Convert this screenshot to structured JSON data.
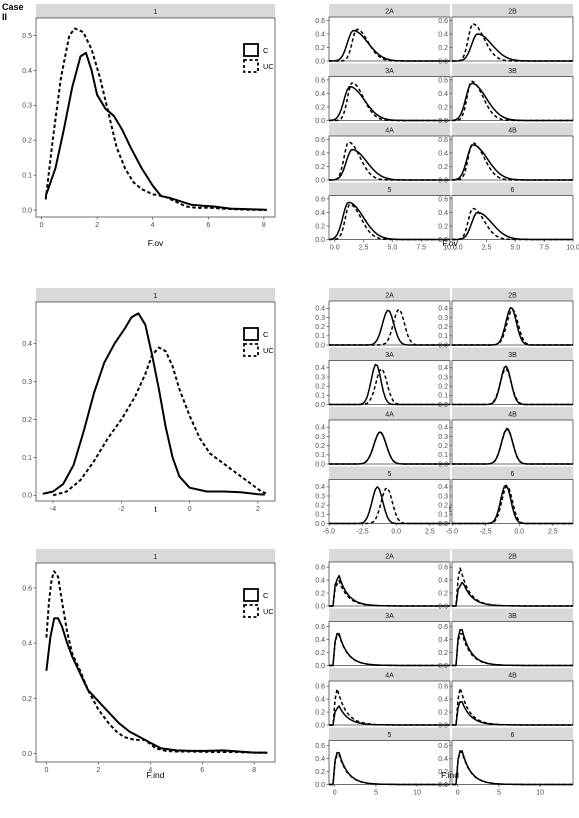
{
  "case_label": [
    "Case",
    "II"
  ],
  "colors": {
    "strip_bg": "#d9d9d9",
    "panel_border": "#333333",
    "line": "#000000",
    "tick_text": "#4d4d4d"
  },
  "legend": {
    "items": [
      {
        "label": "C",
        "linetype": "solid"
      },
      {
        "label": "UC",
        "linetype": "dashed"
      }
    ],
    "placement": "top-right inside"
  },
  "chart_data": [
    {
      "type": "line",
      "xlabel": "F.ov",
      "ylabel": "",
      "strip": "1",
      "xlim": [
        -0.2,
        8.4
      ],
      "ylim": [
        -0.02,
        0.55
      ],
      "xticks": [
        0,
        2,
        4,
        6,
        8
      ],
      "yticks": [
        0.0,
        0.1,
        0.2,
        0.3,
        0.4,
        0.5
      ],
      "series": [
        {
          "name": "C",
          "x": [
            0.15,
            0.5,
            0.8,
            1.1,
            1.4,
            1.6,
            1.8,
            2.0,
            2.3,
            2.6,
            2.9,
            3.2,
            3.6,
            4.0,
            4.3,
            4.6,
            5.0,
            5.4,
            5.8,
            6.2,
            6.8,
            7.5,
            8.1
          ],
          "y": [
            0.04,
            0.12,
            0.23,
            0.35,
            0.44,
            0.45,
            0.4,
            0.33,
            0.29,
            0.27,
            0.23,
            0.18,
            0.12,
            0.07,
            0.04,
            0.035,
            0.025,
            0.015,
            0.012,
            0.01,
            0.004,
            0.002,
            0.001
          ]
        },
        {
          "name": "UC",
          "x": [
            0.15,
            0.4,
            0.7,
            1.0,
            1.2,
            1.5,
            1.8,
            2.1,
            2.4,
            2.7,
            3.0,
            3.3,
            3.6,
            4.0,
            4.4,
            4.8,
            5.2,
            5.6,
            6.0,
            6.5,
            7.0,
            7.5,
            8.1
          ],
          "y": [
            0.03,
            0.2,
            0.38,
            0.5,
            0.52,
            0.51,
            0.46,
            0.38,
            0.28,
            0.18,
            0.12,
            0.08,
            0.06,
            0.045,
            0.04,
            0.025,
            0.01,
            0.006,
            0.007,
            0.004,
            0.002,
            0.001,
            0.0
          ]
        }
      ]
    },
    {
      "type": "line",
      "xlabel": "F.ov",
      "ylabel": "",
      "xlim": [
        -0.5,
        10
      ],
      "ylim": [
        0,
        0.65
      ],
      "xticks": [
        0.0,
        2.5,
        5.0,
        7.5,
        10.0
      ],
      "xtick_labels": [
        "0.0",
        "2.5",
        "5.0",
        "7.5",
        "10.0"
      ],
      "yticks": [
        0.0,
        0.2,
        0.4,
        0.6
      ],
      "panels": [
        {
          "strip": "2A",
          "c_peak": [
            1.6,
            0.45
          ],
          "uc_peak": [
            1.9,
            0.47
          ]
        },
        {
          "strip": "2B",
          "c_peak": [
            1.7,
            0.4
          ],
          "uc_peak": [
            1.3,
            0.55
          ]
        },
        {
          "strip": "3A",
          "c_peak": [
            1.3,
            0.5
          ],
          "uc_peak": [
            1.5,
            0.56
          ]
        },
        {
          "strip": "3B",
          "c_peak": [
            1.2,
            0.55
          ],
          "uc_peak": [
            1.2,
            0.58
          ]
        },
        {
          "strip": "4A",
          "c_peak": [
            1.5,
            0.45
          ],
          "uc_peak": [
            1.2,
            0.56
          ]
        },
        {
          "strip": "4B",
          "c_peak": [
            1.3,
            0.52
          ],
          "uc_peak": [
            1.3,
            0.55
          ]
        },
        {
          "strip": "5",
          "c_peak": [
            1.2,
            0.55
          ],
          "uc_peak": [
            1.3,
            0.52
          ]
        },
        {
          "strip": "6",
          "c_peak": [
            1.7,
            0.4
          ],
          "uc_peak": [
            1.3,
            0.46
          ]
        }
      ]
    },
    {
      "type": "line",
      "xlabel": "t",
      "ylabel": "",
      "strip": "1",
      "xlim": [
        -4.5,
        2.5
      ],
      "ylim": [
        -0.015,
        0.51
      ],
      "xticks": [
        -4,
        -2,
        0,
        2
      ],
      "yticks": [
        0.0,
        0.1,
        0.2,
        0.3,
        0.4
      ],
      "series": [
        {
          "name": "C",
          "x": [
            -4.3,
            -4.0,
            -3.7,
            -3.4,
            -3.1,
            -2.8,
            -2.5,
            -2.2,
            -1.9,
            -1.7,
            -1.5,
            -1.3,
            -1.1,
            -0.9,
            -0.7,
            -0.5,
            -0.3,
            0.0,
            0.5,
            1.0,
            1.5,
            2.0,
            2.2
          ],
          "y": [
            0.004,
            0.01,
            0.03,
            0.08,
            0.17,
            0.27,
            0.35,
            0.4,
            0.44,
            0.47,
            0.48,
            0.45,
            0.37,
            0.28,
            0.18,
            0.1,
            0.05,
            0.02,
            0.01,
            0.01,
            0.008,
            0.003,
            0.002
          ]
        },
        {
          "name": "UC",
          "x": [
            -4.0,
            -3.6,
            -3.2,
            -2.8,
            -2.4,
            -2.0,
            -1.6,
            -1.3,
            -1.1,
            -0.9,
            -0.7,
            -0.5,
            -0.3,
            0.0,
            0.3,
            0.6,
            0.9,
            1.2,
            1.5,
            1.8,
            2.1,
            2.3
          ],
          "y": [
            0.0,
            0.01,
            0.04,
            0.09,
            0.15,
            0.2,
            0.26,
            0.32,
            0.37,
            0.39,
            0.38,
            0.34,
            0.28,
            0.21,
            0.15,
            0.11,
            0.09,
            0.07,
            0.05,
            0.03,
            0.01,
            0.003
          ]
        }
      ]
    },
    {
      "type": "line",
      "xlabel": "t",
      "ylabel": "",
      "xlim": [
        -5,
        4
      ],
      "ylim": [
        0,
        0.48
      ],
      "xticks": [
        -5.0,
        -2.5,
        0.0,
        2.5
      ],
      "xtick_labels": [
        "-5.0",
        "-2.5",
        "0.0",
        "2.5"
      ],
      "yticks": [
        0.0,
        0.1,
        0.2,
        0.3,
        0.4
      ],
      "panels": [
        {
          "strip": "2A",
          "c_peak": [
            -0.6,
            0.38
          ],
          "uc_peak": [
            0.2,
            0.39
          ]
        },
        {
          "strip": "2B",
          "c_peak": [
            -0.6,
            0.41
          ],
          "uc_peak": [
            -0.5,
            0.39
          ]
        },
        {
          "strip": "3A",
          "c_peak": [
            -1.5,
            0.44
          ],
          "uc_peak": [
            -1.1,
            0.39
          ]
        },
        {
          "strip": "3B",
          "c_peak": [
            -1.0,
            0.42
          ],
          "uc_peak": [
            -1.0,
            0.39
          ]
        },
        {
          "strip": "4A",
          "c_peak": [
            -1.2,
            0.35
          ],
          "uc_peak": [
            -1.2,
            0.35
          ]
        },
        {
          "strip": "4B",
          "c_peak": [
            -0.9,
            0.38
          ],
          "uc_peak": [
            -0.9,
            0.39
          ]
        },
        {
          "strip": "5",
          "c_peak": [
            -1.4,
            0.4
          ],
          "uc_peak": [
            -0.7,
            0.39
          ]
        },
        {
          "strip": "6",
          "c_peak": [
            -1.0,
            0.42
          ],
          "uc_peak": [
            -0.9,
            0.41
          ]
        }
      ]
    },
    {
      "type": "line",
      "xlabel": "F.ind",
      "ylabel": "",
      "strip": "1",
      "xlim": [
        -0.4,
        8.8
      ],
      "ylim": [
        -0.03,
        0.69
      ],
      "xticks": [
        0,
        2,
        4,
        6,
        8
      ],
      "yticks": [
        0.0,
        0.2,
        0.4,
        0.6
      ],
      "series": [
        {
          "name": "C",
          "x": [
            0.0,
            0.15,
            0.3,
            0.45,
            0.6,
            0.8,
            1.0,
            1.3,
            1.6,
            2.0,
            2.4,
            2.8,
            3.2,
            3.6,
            4.0,
            4.4,
            5.0,
            5.6,
            6.2,
            6.8,
            7.4,
            8.0,
            8.5
          ],
          "y": [
            0.3,
            0.42,
            0.49,
            0.49,
            0.46,
            0.4,
            0.35,
            0.29,
            0.23,
            0.19,
            0.15,
            0.11,
            0.08,
            0.06,
            0.04,
            0.02,
            0.012,
            0.01,
            0.01,
            0.012,
            0.008,
            0.004,
            0.004
          ]
        },
        {
          "name": "UC",
          "x": [
            0.0,
            0.1,
            0.2,
            0.3,
            0.45,
            0.6,
            0.8,
            1.0,
            1.3,
            1.6,
            2.0,
            2.4,
            2.7,
            3.0,
            3.4,
            3.8,
            4.2,
            4.6,
            5.0,
            5.6,
            6.4,
            7.2,
            8.0,
            8.5
          ],
          "y": [
            0.42,
            0.55,
            0.63,
            0.66,
            0.64,
            0.55,
            0.44,
            0.36,
            0.3,
            0.23,
            0.16,
            0.11,
            0.08,
            0.06,
            0.05,
            0.05,
            0.02,
            0.01,
            0.008,
            0.008,
            0.006,
            0.006,
            0.004,
            0.003
          ]
        }
      ]
    },
    {
      "type": "line",
      "xlabel": "F.ind",
      "ylabel": "",
      "xlim": [
        -0.7,
        14
      ],
      "ylim": [
        0,
        0.68
      ],
      "xticks": [
        0,
        5,
        10
      ],
      "xtick_labels": [
        "0",
        "5",
        "10"
      ],
      "yticks": [
        0.0,
        0.2,
        0.4,
        0.6
      ],
      "panels": [
        {
          "strip": "2A",
          "c_peak": [
            0.5,
            0.48
          ],
          "uc_peak": [
            0.5,
            0.4
          ]
        },
        {
          "strip": "2B",
          "c_peak": [
            0.6,
            0.38
          ],
          "uc_peak": [
            0.3,
            0.6
          ]
        },
        {
          "strip": "3A",
          "c_peak": [
            0.4,
            0.55
          ],
          "uc_peak": [
            0.4,
            0.53
          ]
        },
        {
          "strip": "3B",
          "c_peak": [
            0.4,
            0.62
          ],
          "uc_peak": [
            0.4,
            0.55
          ]
        },
        {
          "strip": "4A",
          "c_peak": [
            0.5,
            0.3
          ],
          "uc_peak": [
            0.3,
            0.57
          ]
        },
        {
          "strip": "4B",
          "c_peak": [
            0.4,
            0.4
          ],
          "uc_peak": [
            0.3,
            0.58
          ]
        },
        {
          "strip": "5",
          "c_peak": [
            0.4,
            0.55
          ],
          "uc_peak": [
            0.4,
            0.52
          ]
        },
        {
          "strip": "6",
          "c_peak": [
            0.4,
            0.58
          ],
          "uc_peak": [
            0.4,
            0.56
          ]
        }
      ]
    }
  ]
}
